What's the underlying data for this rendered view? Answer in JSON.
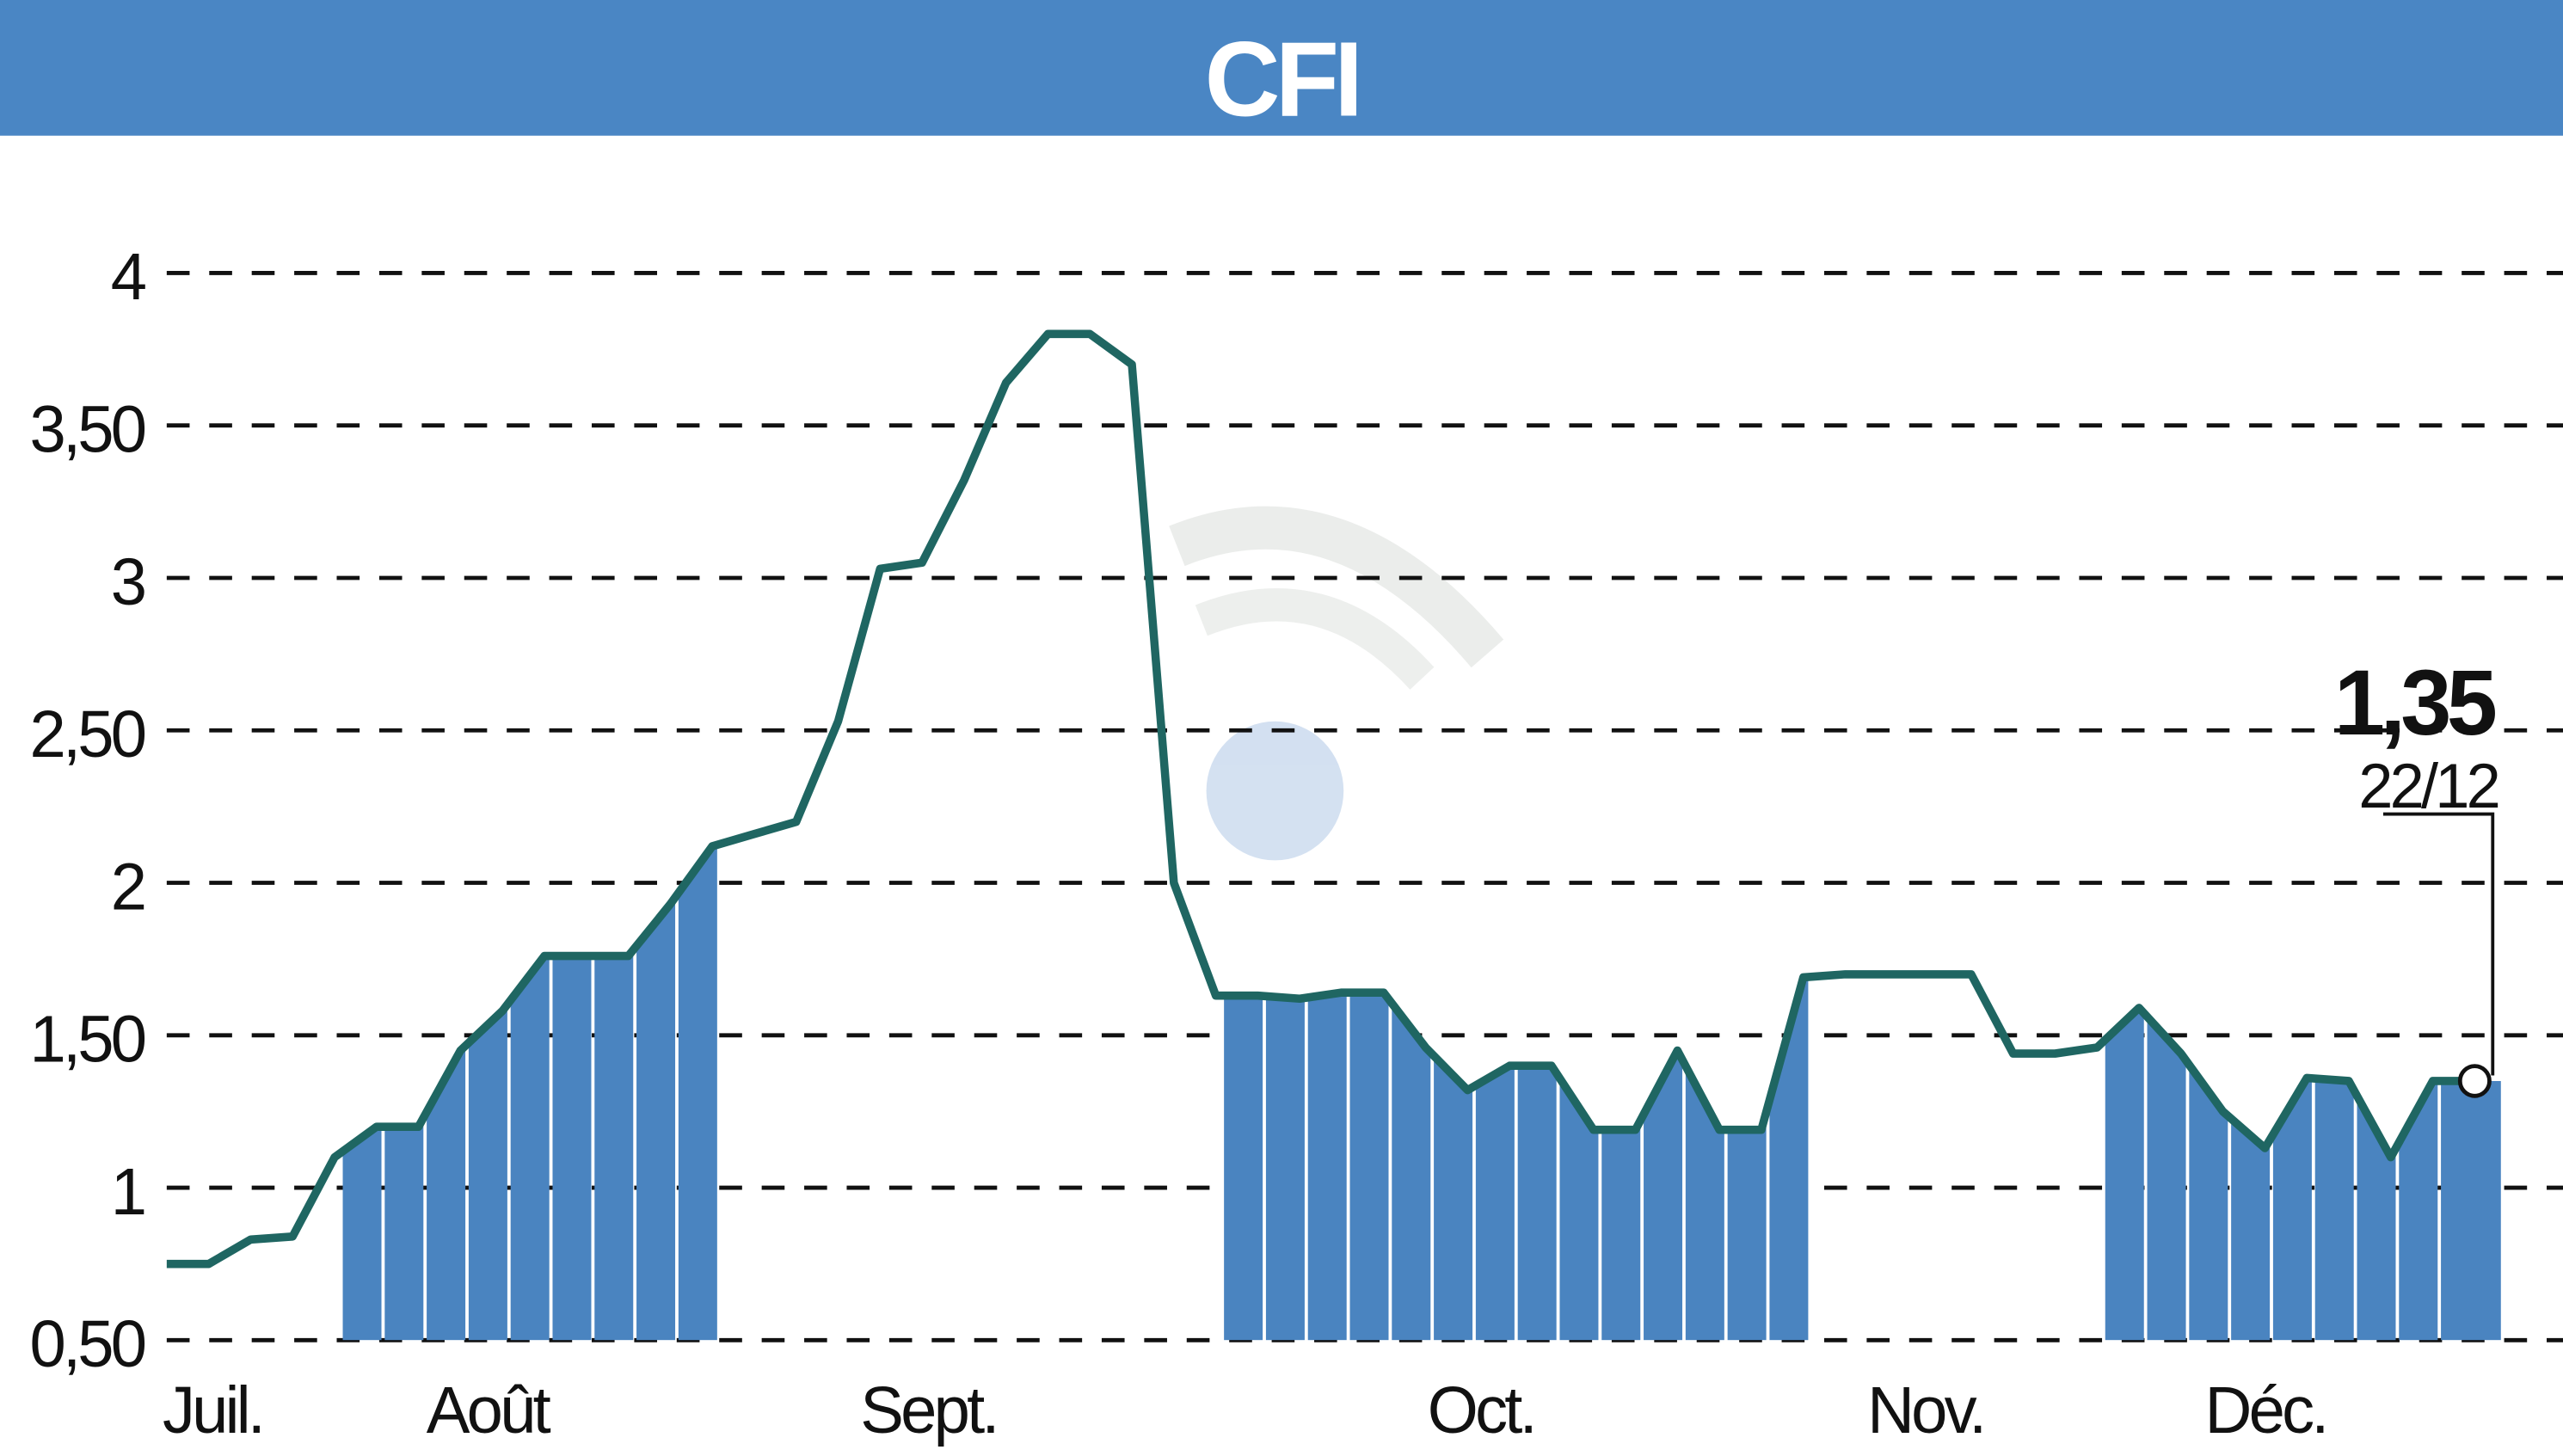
{
  "chart_data": {
    "type": "line",
    "title": "CFI",
    "xlabel": "",
    "ylabel": "",
    "ylim": [
      0.5,
      4
    ],
    "yticks": [
      "0,50",
      "1",
      "1,50",
      "2",
      "2,50",
      "3",
      "3,50",
      "4"
    ],
    "ytick_values": [
      0.5,
      1,
      1.5,
      2,
      2.5,
      3,
      3.5,
      4
    ],
    "xtick_labels": [
      "Juil.",
      "Août",
      "Sept.",
      "Oct.",
      "Nov.",
      "Déc."
    ],
    "grid": "horizontal dashed",
    "series": [
      {
        "values": [
          0.75,
          0.75,
          0.83,
          0.84,
          1.1,
          1.2,
          1.2,
          1.45,
          1.58,
          1.76,
          1.76,
          1.76,
          1.93,
          2.12,
          2.16,
          2.2,
          2.53,
          3.03,
          3.05,
          3.32,
          3.64,
          3.8,
          3.8,
          3.7,
          2.0,
          1.63,
          1.63,
          1.62,
          1.64,
          1.64,
          1.46,
          1.32,
          1.4,
          1.4,
          1.19,
          1.19,
          1.45,
          1.19,
          1.19,
          1.69,
          1.7,
          1.7,
          1.7,
          1.7,
          1.44,
          1.44,
          1.46,
          1.59,
          1.44,
          1.25,
          1.13,
          1.36,
          1.35,
          1.1,
          1.35,
          1.35
        ]
      }
    ],
    "shaded_bar_ranges": [
      [
        5,
        13
      ],
      [
        26,
        39
      ],
      [
        47,
        55
      ]
    ],
    "last_value_label": "1,35",
    "last_date_label": "22/12",
    "colors": {
      "header": "#4a86c4",
      "line": "#1f6662",
      "bars": "#4a84c0",
      "grid": "#111111"
    }
  }
}
